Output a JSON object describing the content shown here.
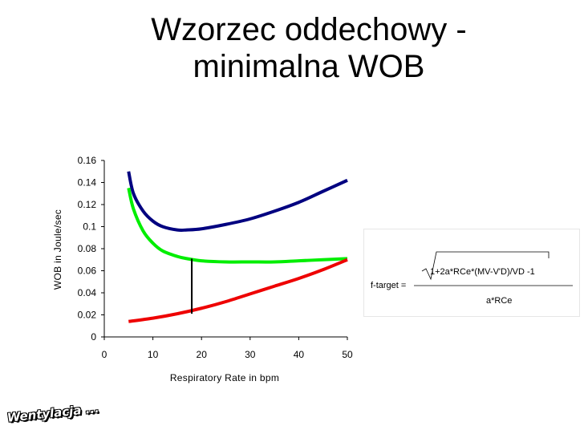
{
  "title": {
    "line1": "Wzorzec oddechowy -",
    "line2": "minimalna WOB"
  },
  "chart_data": {
    "type": "line",
    "xlabel": "Respiratory Rate in bpm",
    "ylabel": "WOB in Joule/sec",
    "xlim": [
      0,
      50
    ],
    "ylim": [
      0,
      0.16
    ],
    "x_ticks": [
      "0",
      "10",
      "20",
      "30",
      "40",
      "50"
    ],
    "y_ticks": [
      "0",
      "0.02",
      "0.04",
      "0.06",
      "0.08",
      "0.1",
      "0.12",
      "0.14",
      "0.16"
    ],
    "grid": false,
    "legend": "none",
    "series": [
      {
        "color": "#000080",
        "x": [
          5,
          6,
          8,
          10,
          12,
          15,
          17,
          20,
          25,
          30,
          35,
          40,
          45,
          50
        ],
        "y": [
          0.15,
          0.13,
          0.114,
          0.105,
          0.1,
          0.097,
          0.097,
          0.098,
          0.102,
          0.107,
          0.114,
          0.122,
          0.132,
          0.142
        ]
      },
      {
        "color": "#00ee00",
        "x": [
          5,
          6,
          8,
          10,
          12,
          15,
          17,
          20,
          25,
          30,
          35,
          40,
          45,
          50
        ],
        "y": [
          0.135,
          0.116,
          0.096,
          0.085,
          0.078,
          0.073,
          0.071,
          0.069,
          0.068,
          0.068,
          0.068,
          0.069,
          0.07,
          0.071
        ]
      },
      {
        "color": "#ee0000",
        "x": [
          5,
          10,
          15,
          20,
          25,
          30,
          35,
          40,
          45,
          50
        ],
        "y": [
          0.014,
          0.017,
          0.021,
          0.026,
          0.032,
          0.039,
          0.046,
          0.053,
          0.061,
          0.07
        ]
      }
    ],
    "annotation_line": {
      "x": 18,
      "y_from": 0.021,
      "y_to": 0.071,
      "color": "#000000"
    }
  },
  "formula": {
    "lhs": "f-target =",
    "numerator": "1+2a*RCe*(MV-V'D)/VD -1",
    "denominator": "a*RCe"
  },
  "logo": {
    "text": "Wentylacja ..."
  }
}
